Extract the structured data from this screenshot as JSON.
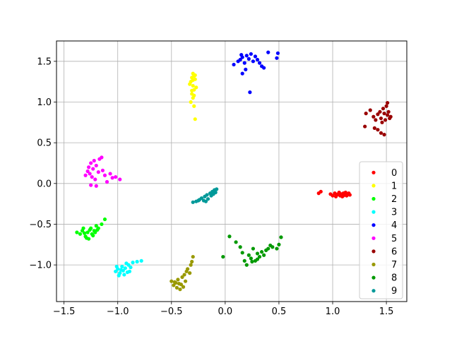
{
  "chart_data": {
    "type": "scatter",
    "title": "",
    "xlabel": "",
    "ylabel": "",
    "xlim": [
      -1.57,
      1.69
    ],
    "ylim": [
      -1.45,
      1.75
    ],
    "grid": true,
    "legend_position": "right",
    "xticks": [
      {
        "value": -1.5,
        "label": "−1.5"
      },
      {
        "value": -1.0,
        "label": "−1.0"
      },
      {
        "value": -0.5,
        "label": "−0.5"
      },
      {
        "value": 0.0,
        "label": "0.0"
      },
      {
        "value": 0.5,
        "label": "0.5"
      },
      {
        "value": 1.0,
        "label": "1.0"
      },
      {
        "value": 1.5,
        "label": "1.5"
      }
    ],
    "yticks": [
      {
        "value": -1.0,
        "label": "−1.0"
      },
      {
        "value": -0.5,
        "label": "−0.5"
      },
      {
        "value": 0.0,
        "label": "0.0"
      },
      {
        "value": 0.5,
        "label": "0.5"
      },
      {
        "value": 1.0,
        "label": "1.0"
      },
      {
        "value": 1.5,
        "label": "1.5"
      }
    ],
    "series": [
      {
        "name": "0",
        "color": "#ff0000",
        "points": [
          [
            0.87,
            -0.12
          ],
          [
            0.89,
            -0.1
          ],
          [
            0.98,
            -0.13
          ],
          [
            1.0,
            -0.15
          ],
          [
            1.02,
            -0.12
          ],
          [
            1.03,
            -0.16
          ],
          [
            1.05,
            -0.13
          ],
          [
            1.06,
            -0.11
          ],
          [
            1.07,
            -0.15
          ],
          [
            1.08,
            -0.13
          ],
          [
            1.09,
            -0.16
          ],
          [
            1.1,
            -0.12
          ],
          [
            1.11,
            -0.14
          ],
          [
            1.12,
            -0.11
          ],
          [
            1.13,
            -0.15
          ],
          [
            1.14,
            -0.13
          ],
          [
            1.15,
            -0.12
          ],
          [
            1.16,
            -0.14
          ],
          [
            1.04,
            -0.14
          ],
          [
            1.1,
            -0.15
          ]
        ]
      },
      {
        "name": "1",
        "color": "#ffff00",
        "points": [
          [
            -0.31,
            1.3
          ],
          [
            -0.3,
            1.35
          ],
          [
            -0.29,
            1.32
          ],
          [
            -0.28,
            1.28
          ],
          [
            -0.32,
            1.25
          ],
          [
            -0.3,
            1.2
          ],
          [
            -0.29,
            1.15
          ],
          [
            -0.31,
            1.1
          ],
          [
            -0.3,
            1.05
          ],
          [
            -0.32,
            1.0
          ],
          [
            -0.29,
            0.95
          ],
          [
            -0.28,
            0.79
          ],
          [
            -0.27,
            1.18
          ],
          [
            -0.33,
            1.22
          ],
          [
            -0.3,
            1.27
          ],
          [
            -0.28,
            1.33
          ],
          [
            -0.31,
            1.14
          ],
          [
            -0.29,
            1.08
          ]
        ]
      },
      {
        "name": "2",
        "color": "#00ff00",
        "points": [
          [
            -1.38,
            -0.6
          ],
          [
            -1.35,
            -0.62
          ],
          [
            -1.33,
            -0.58
          ],
          [
            -1.3,
            -0.65
          ],
          [
            -1.28,
            -0.6
          ],
          [
            -1.27,
            -0.68
          ],
          [
            -1.25,
            -0.55
          ],
          [
            -1.24,
            -0.62
          ],
          [
            -1.22,
            -0.58
          ],
          [
            -1.2,
            -0.52
          ],
          [
            -1.18,
            -0.55
          ],
          [
            -1.15,
            -0.5
          ],
          [
            -1.12,
            -0.44
          ],
          [
            -1.32,
            -0.55
          ],
          [
            -1.29,
            -0.67
          ],
          [
            -1.26,
            -0.57
          ],
          [
            -1.23,
            -0.64
          ],
          [
            -1.21,
            -0.6
          ],
          [
            -1.31,
            -0.61
          ],
          [
            -1.19,
            -0.57
          ]
        ]
      },
      {
        "name": "3",
        "color": "#00ffff",
        "points": [
          [
            -1.02,
            -1.08
          ],
          [
            -1.0,
            -1.05
          ],
          [
            -0.98,
            -1.1
          ],
          [
            -0.96,
            -1.02
          ],
          [
            -0.95,
            -1.07
          ],
          [
            -0.94,
            -1.12
          ],
          [
            -0.93,
            -1.04
          ],
          [
            -0.92,
            -0.98
          ],
          [
            -0.9,
            -1.0
          ],
          [
            -0.88,
            -1.03
          ],
          [
            -0.86,
            -0.97
          ],
          [
            -0.82,
            -0.96
          ],
          [
            -0.78,
            -0.95
          ],
          [
            -0.99,
            -1.13
          ],
          [
            -0.97,
            -1.06
          ],
          [
            -0.91,
            -1.09
          ],
          [
            -1.01,
            -1.02
          ],
          [
            -0.89,
            -1.08
          ]
        ]
      },
      {
        "name": "4",
        "color": "#0000ff",
        "points": [
          [
            0.08,
            1.46
          ],
          [
            0.12,
            1.5
          ],
          [
            0.14,
            1.52
          ],
          [
            0.16,
            1.55
          ],
          [
            0.18,
            1.48
          ],
          [
            0.2,
            1.57
          ],
          [
            0.22,
            1.53
          ],
          [
            0.24,
            1.59
          ],
          [
            0.26,
            1.5
          ],
          [
            0.28,
            1.56
          ],
          [
            0.3,
            1.52
          ],
          [
            0.32,
            1.48
          ],
          [
            0.34,
            1.44
          ],
          [
            0.36,
            1.42
          ],
          [
            0.4,
            1.61
          ],
          [
            0.48,
            1.54
          ],
          [
            0.49,
            1.6
          ],
          [
            0.23,
            1.12
          ],
          [
            0.16,
            1.35
          ],
          [
            0.19,
            1.4
          ],
          [
            0.15,
            1.58
          ]
        ]
      },
      {
        "name": "5",
        "color": "#ff00ff",
        "points": [
          [
            -1.3,
            0.1
          ],
          [
            -1.28,
            0.15
          ],
          [
            -1.27,
            0.2
          ],
          [
            -1.26,
            0.12
          ],
          [
            -1.25,
            0.25
          ],
          [
            -1.24,
            0.08
          ],
          [
            -1.23,
            0.18
          ],
          [
            -1.22,
            0.28
          ],
          [
            -1.21,
            0.05
          ],
          [
            -1.2,
            0.22
          ],
          [
            -1.18,
            0.14
          ],
          [
            -1.17,
            0.3
          ],
          [
            -1.15,
            0.32
          ],
          [
            -1.14,
            0.16
          ],
          [
            -1.12,
            0.1
          ],
          [
            -1.1,
            0.02
          ],
          [
            -1.07,
            0.12
          ],
          [
            -1.05,
            0.07
          ],
          [
            -1.02,
            0.08
          ],
          [
            -0.98,
            0.05
          ],
          [
            -1.25,
            -0.02
          ],
          [
            -1.2,
            -0.03
          ]
        ]
      },
      {
        "name": "6",
        "color": "#990000",
        "points": [
          [
            1.3,
            0.7
          ],
          [
            1.31,
            0.86
          ],
          [
            1.35,
            0.9
          ],
          [
            1.38,
            0.82
          ],
          [
            1.4,
            0.78
          ],
          [
            1.42,
            0.85
          ],
          [
            1.44,
            0.88
          ],
          [
            1.45,
            0.8
          ],
          [
            1.46,
            0.75
          ],
          [
            1.47,
            0.92
          ],
          [
            1.48,
            0.86
          ],
          [
            1.49,
            0.78
          ],
          [
            1.5,
            0.95
          ],
          [
            1.51,
            0.84
          ],
          [
            1.52,
            0.88
          ],
          [
            1.53,
            0.8
          ],
          [
            1.54,
            0.82
          ],
          [
            1.42,
            0.66
          ],
          [
            1.45,
            0.62
          ],
          [
            1.48,
            0.6
          ],
          [
            1.39,
            0.68
          ],
          [
            1.51,
            0.99
          ]
        ]
      },
      {
        "name": "7",
        "color": "#999900",
        "points": [
          [
            -0.5,
            -1.2
          ],
          [
            -0.48,
            -1.25
          ],
          [
            -0.46,
            -1.22
          ],
          [
            -0.45,
            -1.28
          ],
          [
            -0.44,
            -1.18
          ],
          [
            -0.42,
            -1.3
          ],
          [
            -0.41,
            -1.24
          ],
          [
            -0.4,
            -1.15
          ],
          [
            -0.39,
            -1.27
          ],
          [
            -0.38,
            -1.12
          ],
          [
            -0.37,
            -1.2
          ],
          [
            -0.36,
            -1.08
          ],
          [
            -0.35,
            -1.05
          ],
          [
            -0.33,
            -1.1
          ],
          [
            -0.32,
            -1.0
          ],
          [
            -0.31,
            -0.96
          ],
          [
            -0.3,
            -0.9
          ],
          [
            -0.43,
            -1.23
          ],
          [
            -0.47,
            -1.21
          ]
        ]
      },
      {
        "name": "8",
        "color": "#009900",
        "points": [
          [
            -0.02,
            -0.9
          ],
          [
            0.04,
            -0.65
          ],
          [
            0.1,
            -0.72
          ],
          [
            0.14,
            -0.78
          ],
          [
            0.16,
            -0.85
          ],
          [
            0.18,
            -0.95
          ],
          [
            0.2,
            -1.0
          ],
          [
            0.22,
            -0.88
          ],
          [
            0.24,
            -0.92
          ],
          [
            0.26,
            -0.8
          ],
          [
            0.28,
            -0.95
          ],
          [
            0.3,
            -0.86
          ],
          [
            0.32,
            -0.9
          ],
          [
            0.34,
            -0.84
          ],
          [
            0.36,
            -0.88
          ],
          [
            0.38,
            -0.82
          ],
          [
            0.4,
            -0.8
          ],
          [
            0.42,
            -0.76
          ],
          [
            0.44,
            -0.78
          ],
          [
            0.48,
            -0.8
          ],
          [
            0.5,
            -0.75
          ],
          [
            0.52,
            -0.66
          ],
          [
            0.25,
            -0.96
          ],
          [
            0.3,
            -0.93
          ]
        ]
      },
      {
        "name": "9",
        "color": "#009999",
        "points": [
          [
            -0.3,
            -0.23
          ],
          [
            -0.27,
            -0.22
          ],
          [
            -0.24,
            -0.2
          ],
          [
            -0.22,
            -0.18
          ],
          [
            -0.2,
            -0.21
          ],
          [
            -0.19,
            -0.16
          ],
          [
            -0.17,
            -0.14
          ],
          [
            -0.16,
            -0.19
          ],
          [
            -0.14,
            -0.12
          ],
          [
            -0.13,
            -0.15
          ],
          [
            -0.12,
            -0.1
          ],
          [
            -0.11,
            -0.13
          ],
          [
            -0.1,
            -0.08
          ],
          [
            -0.09,
            -0.11
          ],
          [
            -0.08,
            -0.07
          ],
          [
            -0.18,
            -0.22
          ],
          [
            -0.25,
            -0.21
          ]
        ]
      }
    ]
  }
}
